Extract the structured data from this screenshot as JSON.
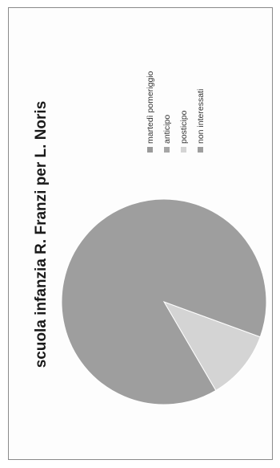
{
  "chart_data": {
    "type": "pie",
    "title": "scuola infanzia R. Franzi per L. Noris",
    "categories": [
      "martedì pomeriggio",
      "anticipo",
      "posticipo",
      "non interessati"
    ],
    "values": [
      0,
      0,
      11,
      89
    ],
    "colors": [
      "#9a9a9a",
      "#a6a6a6",
      "#d4d4d4",
      "#9e9e9e"
    ],
    "legend_position": "right",
    "orientation": "rotated 90° counter-clockwise"
  }
}
